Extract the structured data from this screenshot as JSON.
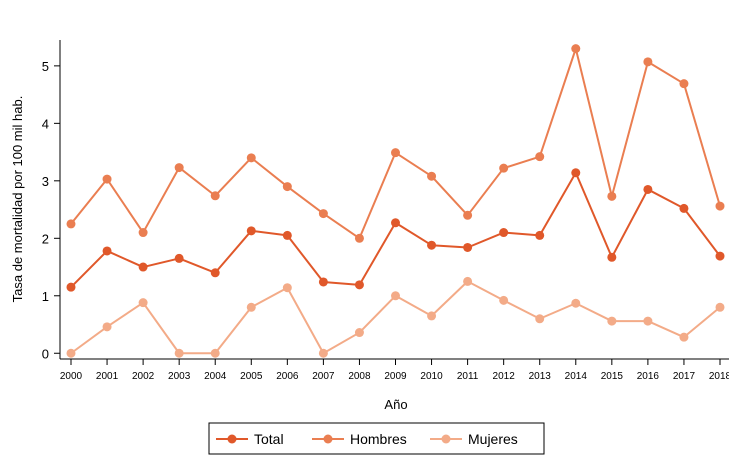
{
  "chart_data": {
    "type": "line",
    "xlabel": "Año",
    "ylabel": "Tasa de mortalidad por 100 mil hab.",
    "x": [
      "2000",
      "2001",
      "2002",
      "2003",
      "2004",
      "2005",
      "2006",
      "2007",
      "2008",
      "2009",
      "2010",
      "2011",
      "2012",
      "2013",
      "2014",
      "2015",
      "2016",
      "2017",
      "2018"
    ],
    "yticks": [
      0,
      1,
      2,
      3,
      4,
      5
    ],
    "ylim": [
      -0.1,
      5.45
    ],
    "grid": false,
    "legend_position": "bottom",
    "series": [
      {
        "name": "Total",
        "color": "#e0582a",
        "values": [
          1.15,
          1.78,
          1.5,
          1.65,
          1.4,
          2.13,
          2.05,
          1.24,
          1.19,
          2.27,
          1.88,
          1.84,
          2.1,
          2.05,
          3.14,
          1.67,
          2.85,
          2.52,
          1.69
        ]
      },
      {
        "name": "Hombres",
        "color": "#ea7e51",
        "values": [
          2.25,
          3.03,
          2.1,
          3.23,
          2.74,
          3.4,
          2.9,
          2.43,
          2.0,
          3.49,
          3.08,
          2.4,
          3.22,
          3.42,
          5.3,
          2.73,
          5.07,
          4.69,
          2.56
        ]
      },
      {
        "name": "Mujeres",
        "color": "#f3ab88",
        "values": [
          0.0,
          0.46,
          0.88,
          0.0,
          0.0,
          0.8,
          1.14,
          0.0,
          0.36,
          1.0,
          0.65,
          1.25,
          0.92,
          0.6,
          0.87,
          0.56,
          0.56,
          0.28,
          0.8
        ]
      }
    ]
  }
}
